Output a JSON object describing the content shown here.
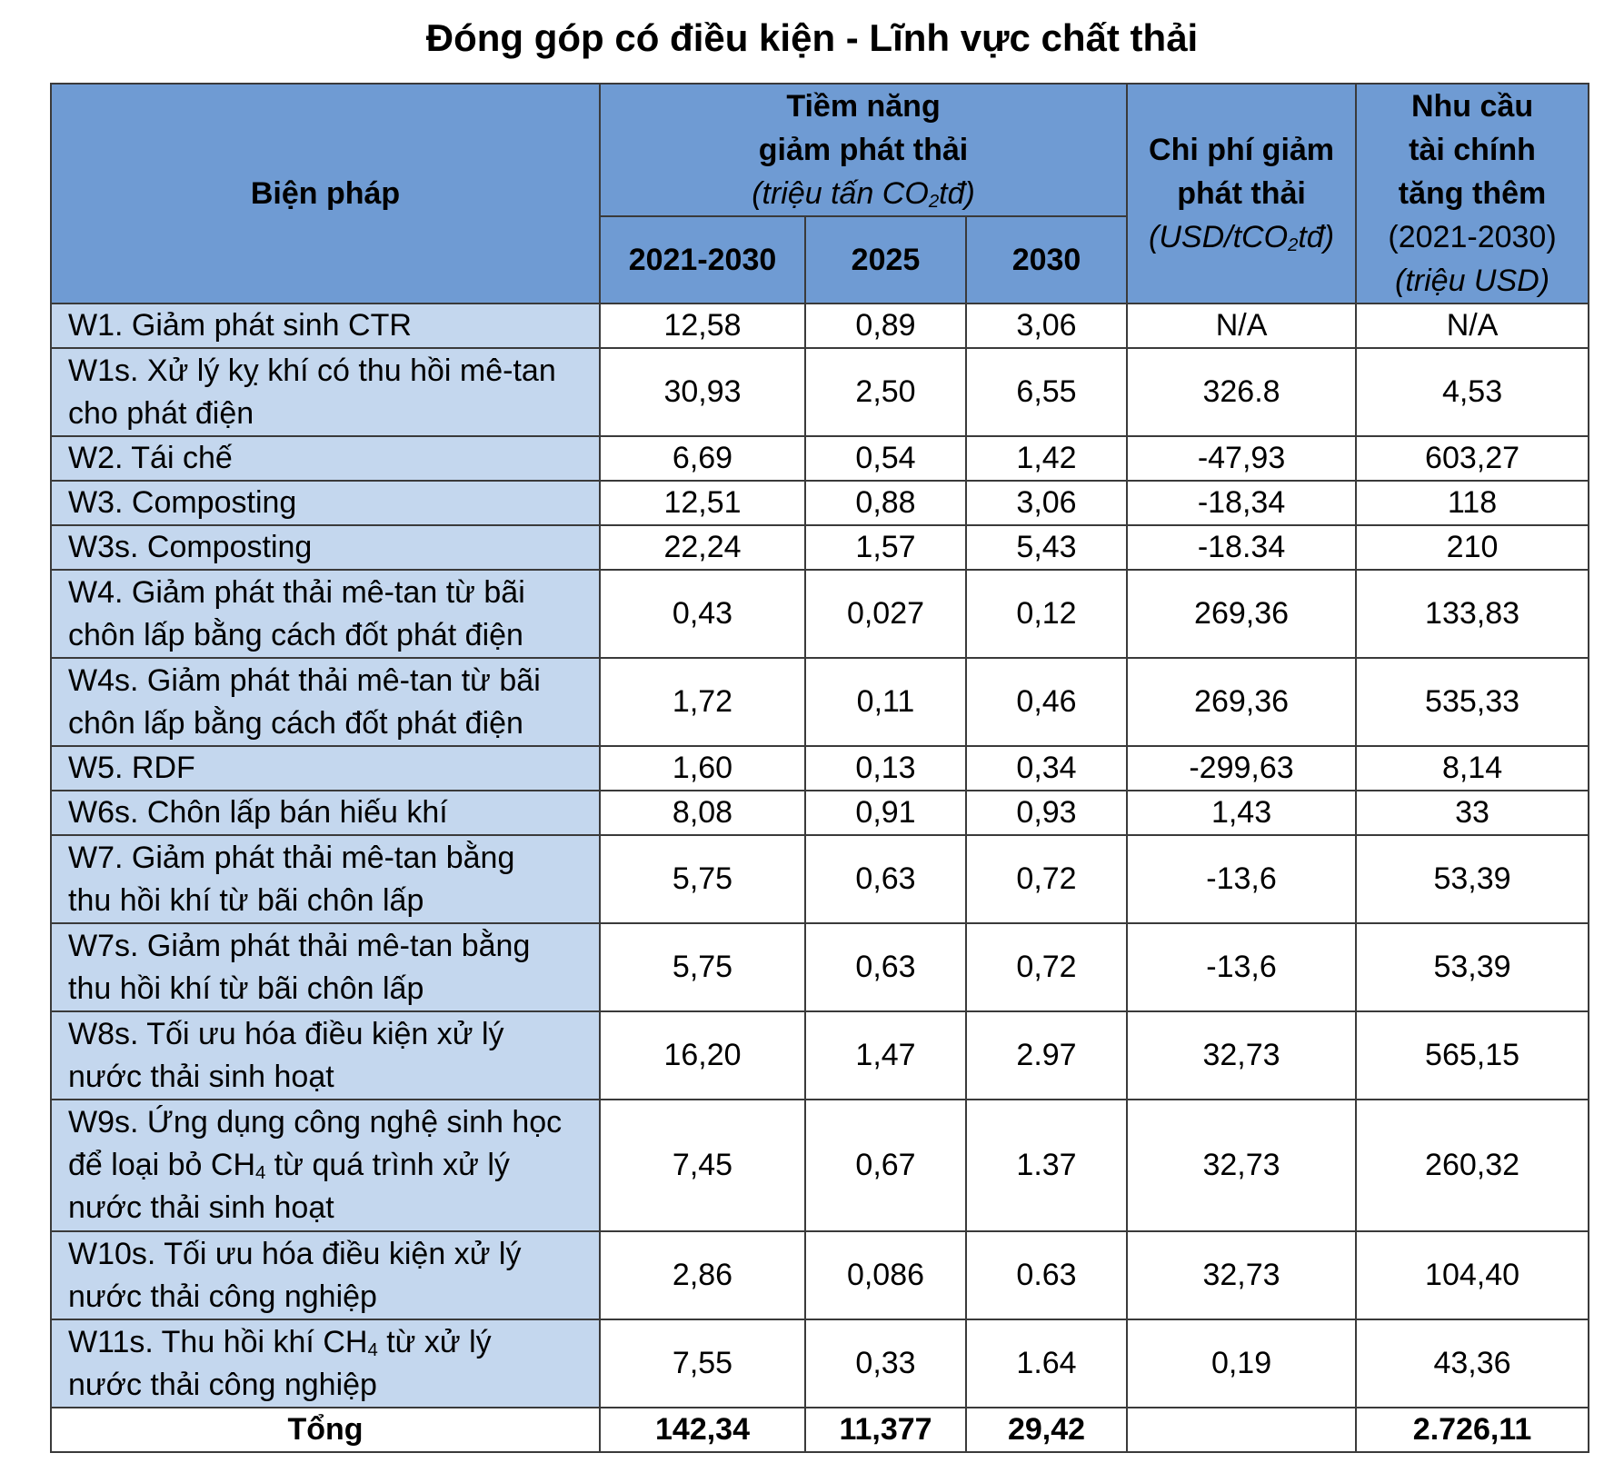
{
  "title": "Đóng góp có điều kiện - Lĩnh vực chất thải",
  "header": {
    "measure": "Biện pháp",
    "potential_line1": "Tiềm năng",
    "potential_line2": "giảm phát thải",
    "potential_unit_pre": "(triệu tấn CO",
    "potential_unit_sub": "2",
    "potential_unit_post": "tđ)",
    "period": "2021-2030",
    "y2025": "2025",
    "y2030": "2030",
    "cost_line1": "Chi phí giảm",
    "cost_line2": "phát thải",
    "cost_unit_pre": "(USD/tCO",
    "cost_unit_sub": "2",
    "cost_unit_post": "tđ)",
    "finance_line1": "Nhu cầu",
    "finance_line2": "tài chính",
    "finance_line3": "tăng thêm",
    "finance_period": "(2021-2030)",
    "finance_unit": "(triệu USD)"
  },
  "rows": [
    {
      "m1": "W1. Giảm phát sinh CTR",
      "m2": "",
      "p": "12,58",
      "a": "0,89",
      "b": "3,06",
      "c": "N/A",
      "f": "N/A"
    },
    {
      "m1": "W1s. Xử lý kỵ khí có thu hồi mê-tan",
      "m2": "cho phát điện",
      "p": "30,93",
      "a": "2,50",
      "b": "6,55",
      "c": "326.8",
      "f": "4,53"
    },
    {
      "m1": "W2. Tái chế",
      "m2": "",
      "p": "6,69",
      "a": "0,54",
      "b": "1,42",
      "c": "-47,93",
      "f": "603,27"
    },
    {
      "m1": "W3. Composting",
      "m2": "",
      "p": "12,51",
      "a": "0,88",
      "b": "3,06",
      "c": "-18,34",
      "f": "118"
    },
    {
      "m1": "W3s. Composting",
      "m2": "",
      "p": "22,24",
      "a": "1,57",
      "b": "5,43",
      "c": "-18.34",
      "f": "210"
    },
    {
      "m1": "W4. Giảm phát thải mê-tan từ bãi",
      "m2": "chôn lấp bằng cách đốt phát điện",
      "p": "0,43",
      "a": "0,027",
      "b": "0,12",
      "c": "269,36",
      "f": "133,83"
    },
    {
      "m1": "W4s. Giảm phát thải mê-tan từ bãi",
      "m2": "chôn lấp bằng cách đốt phát điện",
      "p": "1,72",
      "a": "0,11",
      "b": "0,46",
      "c": "269,36",
      "f": "535,33"
    },
    {
      "m1": "W5. RDF",
      "m2": "",
      "p": "1,60",
      "a": "0,13",
      "b": "0,34",
      "c": "-299,63",
      "f": "8,14"
    },
    {
      "m1": "W6s. Chôn lấp bán hiếu khí",
      "m2": "",
      "p": "8,08",
      "a": "0,91",
      "b": "0,93",
      "c": "1,43",
      "f": "33"
    },
    {
      "m1": "W7. Giảm phát thải mê-tan bằng",
      "m2": "thu hồi khí từ bãi chôn lấp",
      "p": "5,75",
      "a": "0,63",
      "b": "0,72",
      "c": "-13,6",
      "f": "53,39"
    },
    {
      "m1": "W7s. Giảm phát thải mê-tan bằng",
      "m2": "thu hồi khí từ bãi chôn lấp",
      "p": "5,75",
      "a": "0,63",
      "b": "0,72",
      "c": "-13,6",
      "f": "53,39"
    },
    {
      "m1": "W8s. Tối ưu hóa điều kiện xử lý",
      "m2": "nước thải sinh hoạt",
      "p": "16,20",
      "a": "1,47",
      "b": "2.97",
      "c": "32,73",
      "f": "565,15"
    },
    {
      "m1": "W10s. Tối ưu hóa điều kiện xử lý",
      "m2": "nước thải công nghiệp",
      "p": "2,86",
      "a": "0,086",
      "b": "0.63",
      "c": "32,73",
      "f": "104,40"
    }
  ],
  "w9": {
    "l1": "W9s. Ứng dụng công nghệ sinh học",
    "l2_pre": "để loại bỏ CH",
    "l2_sub": "4",
    "l2_post": " từ quá trình xử lý",
    "l3": "nước thải sinh hoạt",
    "p": "7,45",
    "a": "0,67",
    "b": "1.37",
    "c": "32,73",
    "f": "260,32"
  },
  "w11": {
    "l1_pre": "W11s. Thu hồi khí CH",
    "l1_sub": "4",
    "l1_post": " từ xử lý",
    "l2": "nước thải công nghiệp",
    "p": "7,55",
    "a": "0,33",
    "b": "1.64",
    "c": "0,19",
    "f": "43,36"
  },
  "total": {
    "label": "Tổng",
    "p": "142,34",
    "a": "11,377",
    "b": "29,42",
    "c": "",
    "f": "2.726,11"
  }
}
